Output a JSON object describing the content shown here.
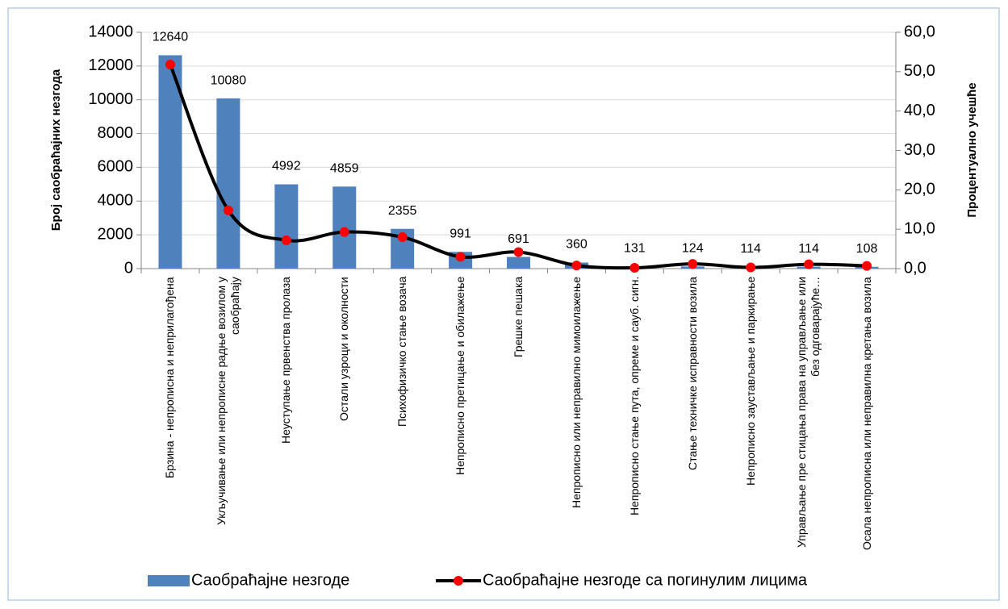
{
  "chart_data": {
    "type": "bar",
    "categories": [
      "Брзина - непрописна и неприлагођена",
      "Укључивање или непрописне радње возилом у саобраћају",
      "Неуступање првенства пролаза",
      "Остали узроци и околности",
      "Психофизичко стање возача",
      "Непрописно претицање и обилажење",
      "Грешке пешака",
      "Непрописно или неправилно мимоилажење",
      "Непрописно стање пута, опреме и сауб. сигн.",
      "Стање техничке исправности возила",
      "Непрописно заустављање и паркирање",
      "Управљање пре стицања права на управљање или без одговарајуће…",
      "Осала непрописна или неправилна кретања возила"
    ],
    "series": [
      {
        "name": "Саобраћајне незгоде",
        "type": "bar",
        "color": "#4f81bd",
        "values": [
          12640,
          10080,
          4992,
          4859,
          2355,
          991,
          691,
          360,
          131,
          124,
          114,
          114,
          108
        ]
      },
      {
        "name": "Саобраћајне незгоде са погинулим лицима",
        "type": "line",
        "axis": "y2",
        "color": "#000000",
        "marker_color": "#ff0000",
        "values": [
          51.8,
          14.8,
          7.2,
          9.3,
          8.0,
          3.0,
          4.2,
          0.8,
          0.2,
          1.2,
          0.3,
          1.1,
          0.7
        ]
      }
    ],
    "ylabel": "Број саобраћајних незгода",
    "y2label": "Процентуално учешће",
    "ylim": [
      0,
      14000
    ],
    "yticks": [
      0,
      2000,
      4000,
      6000,
      8000,
      10000,
      12000,
      14000
    ],
    "y2lim": [
      0,
      60
    ],
    "y2ticks": [
      {
        "value": 0,
        "label": "0,0"
      },
      {
        "value": 10,
        "label": "10,0"
      },
      {
        "value": 20,
        "label": "20,0"
      },
      {
        "value": 30,
        "label": "30,0"
      },
      {
        "value": 40,
        "label": "40,0"
      },
      {
        "value": 50,
        "label": "50,0"
      },
      {
        "value": 60,
        "label": "60,0"
      }
    ],
    "grid": true,
    "legend": "bottom"
  }
}
